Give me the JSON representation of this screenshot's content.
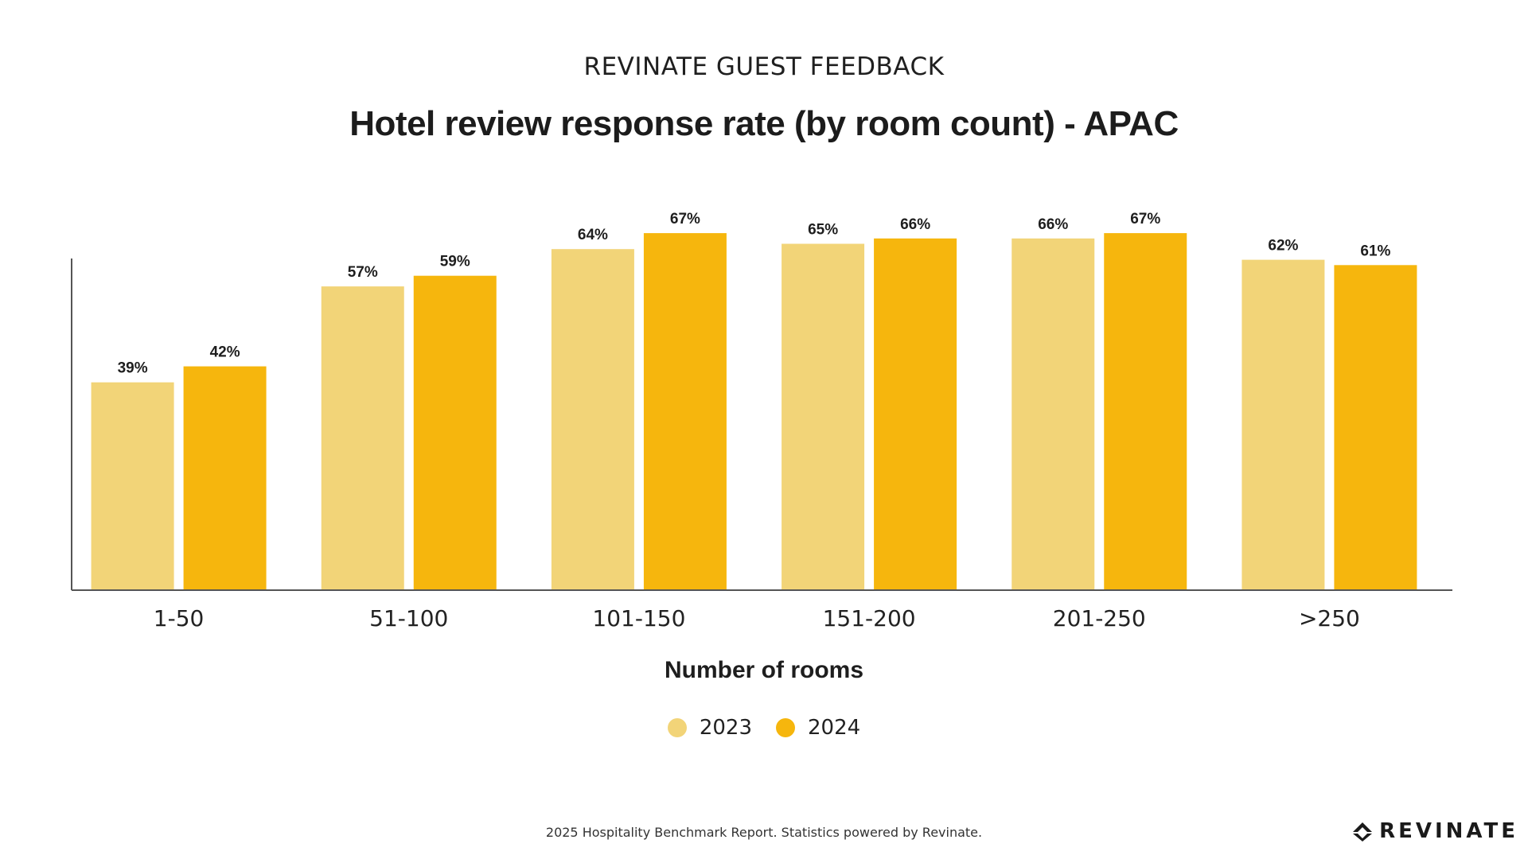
{
  "header": {
    "supertitle": "REVINATE GUEST FEEDBACK",
    "title": "Hotel review response rate (by room count) - APAC"
  },
  "chart_data": {
    "type": "bar",
    "title": "Hotel review response rate (by room count) - APAC",
    "xlabel": "Number of rooms",
    "ylabel": "",
    "categories": [
      "1-50",
      "51-100",
      "101-150",
      "151-200",
      "201-250",
      ">250"
    ],
    "series": [
      {
        "name": "2023",
        "values": [
          39,
          57,
          64,
          65,
          66,
          62
        ],
        "color": "#F2D478"
      },
      {
        "name": "2024",
        "values": [
          42,
          59,
          67,
          66,
          67,
          61
        ],
        "color": "#F6B60D"
      }
    ],
    "value_suffix": "%",
    "ylim": [
      0,
      80
    ],
    "grid": false,
    "legend_position": "bottom-center"
  },
  "footer": {
    "note": "2025 Hospitality Benchmark Report. Statistics powered by Revinate.",
    "logo_text": "REVINATE"
  }
}
